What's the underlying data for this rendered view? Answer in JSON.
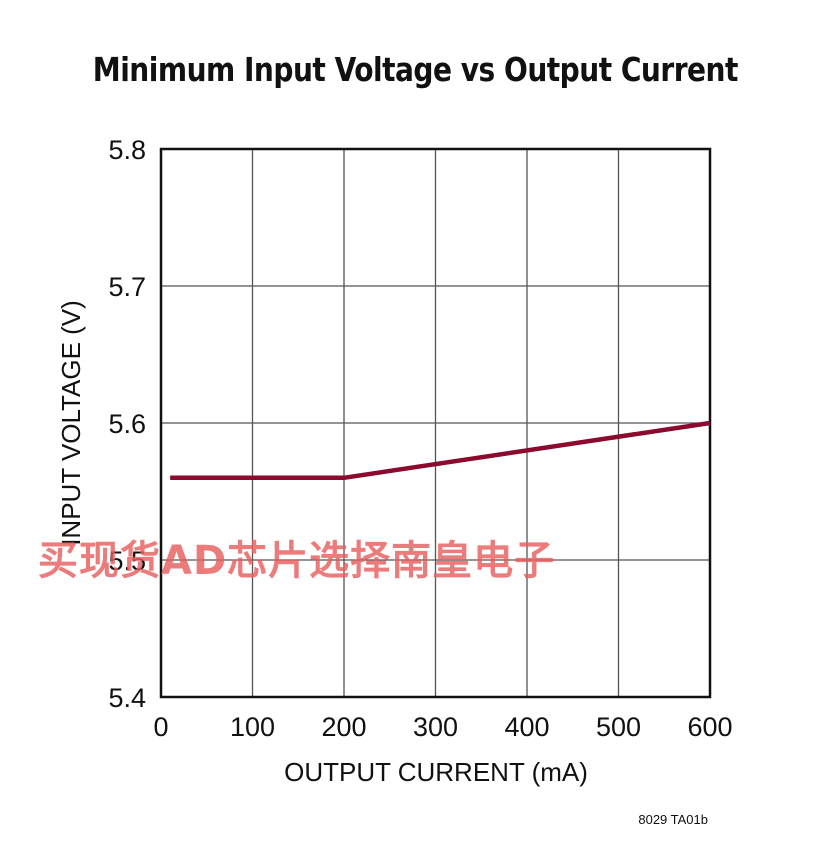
{
  "chart_data": {
    "type": "line",
    "title": "Minimum Input Voltage vs Output Current",
    "xlabel": "OUTPUT CURRENT (mA)",
    "ylabel": "INPUT VOLTAGE (V)",
    "xlim": [
      0,
      600
    ],
    "ylim": [
      5.4,
      5.8
    ],
    "x_ticks": [
      0,
      100,
      200,
      300,
      400,
      500,
      600
    ],
    "y_ticks": [
      5.4,
      5.5,
      5.6,
      5.7,
      5.8
    ],
    "x_tick_labels": [
      "0",
      "100",
      "200",
      "300",
      "400",
      "500",
      "600"
    ],
    "y_tick_labels": [
      "5.4",
      "5.5",
      "5.6",
      "5.7",
      "5.8"
    ],
    "grid": true,
    "series": [
      {
        "color": "#8b0a2e",
        "x": [
          10,
          200,
          600
        ],
        "y": [
          5.56,
          5.56,
          5.6
        ]
      }
    ],
    "figure_code": "8029 TA01b"
  },
  "watermark": "买现货AD芯片选择南皇电子"
}
